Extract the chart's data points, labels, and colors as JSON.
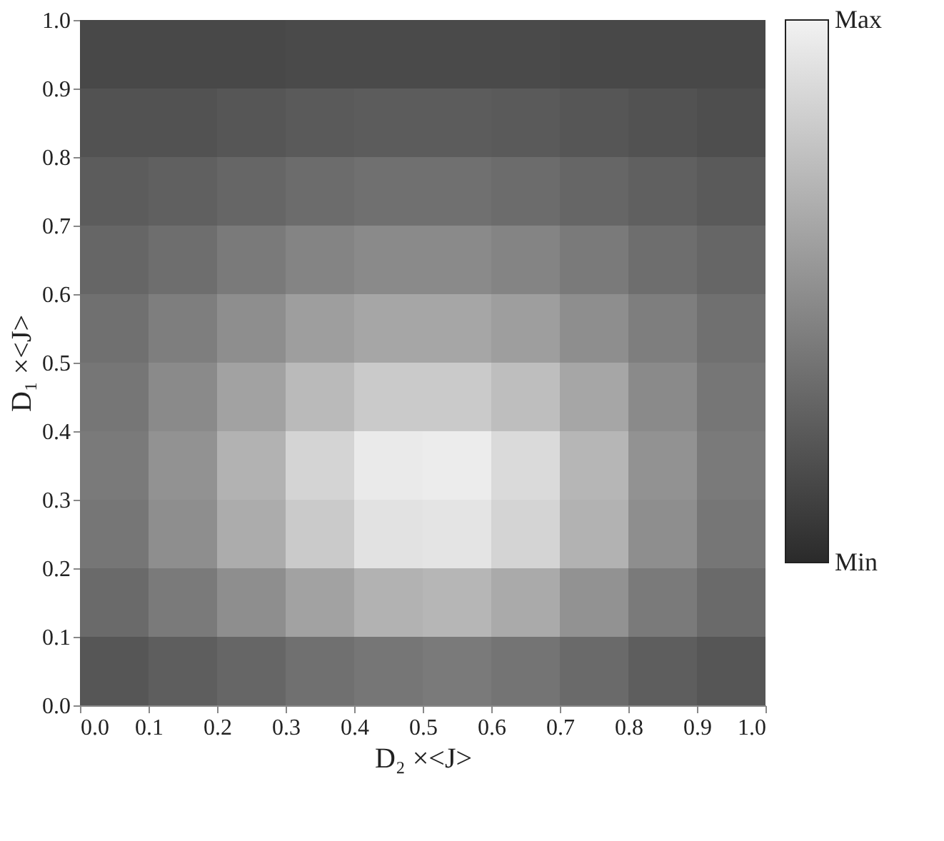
{
  "chart_data": {
    "type": "heatmap",
    "xlabel": "D₂ ×<J>",
    "ylabel": "D₁ ×<J>",
    "x": [
      0.05,
      0.15,
      0.25,
      0.35,
      0.45,
      0.55,
      0.65,
      0.75,
      0.85,
      0.95
    ],
    "y": [
      0.95,
      0.85,
      0.75,
      0.65,
      0.55,
      0.45,
      0.35,
      0.25,
      0.15,
      0.05
    ],
    "xlim": [
      0,
      1
    ],
    "ylim": [
      0,
      1
    ],
    "xticks": [
      {
        "value": 0,
        "label": "0.0"
      },
      {
        "value": 0.1,
        "label": "0.1"
      },
      {
        "value": 0.2,
        "label": "0.2"
      },
      {
        "value": 0.3,
        "label": "0.3"
      },
      {
        "value": 0.4,
        "label": "0.4"
      },
      {
        "value": 0.5,
        "label": "0.5"
      },
      {
        "value": 0.6,
        "label": "0.6"
      },
      {
        "value": 0.7,
        "label": "0.7"
      },
      {
        "value": 0.8,
        "label": "0.8"
      },
      {
        "value": 0.9,
        "label": "0.9"
      },
      {
        "value": 1,
        "label": "1.0"
      }
    ],
    "yticks": [
      {
        "value": 0,
        "label": "0.0"
      },
      {
        "value": 0.1,
        "label": "0.1"
      },
      {
        "value": 0.2,
        "label": "0.2"
      },
      {
        "value": 0.3,
        "label": "0.3"
      },
      {
        "value": 0.4,
        "label": "0.4"
      },
      {
        "value": 0.5,
        "label": "0.5"
      },
      {
        "value": 0.6,
        "label": "0.6"
      },
      {
        "value": 0.7,
        "label": "0.7"
      },
      {
        "value": 0.8,
        "label": "0.8"
      },
      {
        "value": 0.9,
        "label": "0.9"
      },
      {
        "value": 1,
        "label": "1.0"
      }
    ],
    "cells": [
      [
        0.15,
        0.15,
        0.15,
        0.16,
        0.16,
        0.16,
        0.16,
        0.15,
        0.15,
        0.15
      ],
      [
        0.2,
        0.2,
        0.22,
        0.24,
        0.25,
        0.25,
        0.24,
        0.22,
        0.2,
        0.18
      ],
      [
        0.25,
        0.27,
        0.3,
        0.33,
        0.35,
        0.35,
        0.33,
        0.3,
        0.27,
        0.24
      ],
      [
        0.3,
        0.34,
        0.4,
        0.45,
        0.48,
        0.48,
        0.45,
        0.4,
        0.34,
        0.3
      ],
      [
        0.35,
        0.42,
        0.5,
        0.58,
        0.62,
        0.62,
        0.58,
        0.5,
        0.42,
        0.35
      ],
      [
        0.38,
        0.48,
        0.6,
        0.72,
        0.8,
        0.8,
        0.74,
        0.62,
        0.48,
        0.38
      ],
      [
        0.4,
        0.52,
        0.68,
        0.85,
        0.96,
        0.97,
        0.88,
        0.7,
        0.52,
        0.4
      ],
      [
        0.38,
        0.5,
        0.65,
        0.8,
        0.92,
        0.93,
        0.85,
        0.68,
        0.5,
        0.38
      ],
      [
        0.32,
        0.4,
        0.5,
        0.6,
        0.68,
        0.7,
        0.64,
        0.52,
        0.4,
        0.32
      ],
      [
        0.22,
        0.26,
        0.3,
        0.35,
        0.38,
        0.4,
        0.37,
        0.32,
        0.26,
        0.22
      ]
    ],
    "clim": [
      0,
      1
    ],
    "cticks": [
      {
        "value": 0,
        "label": "Min"
      },
      {
        "value": 1,
        "label": "Max"
      }
    ],
    "colors": [
      "#2a2a2a",
      "#f2f2f2"
    ],
    "grid": false
  }
}
